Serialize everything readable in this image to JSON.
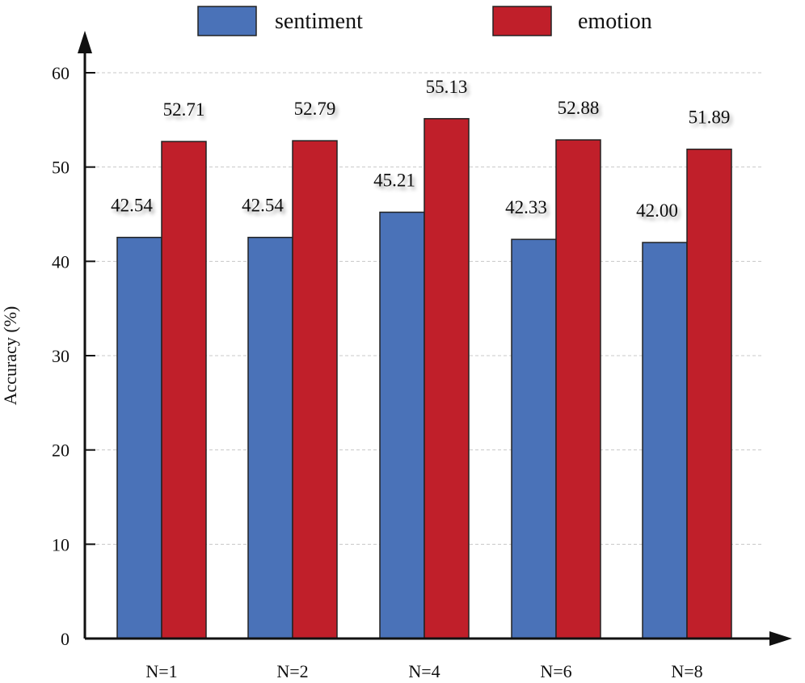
{
  "chart_data": {
    "type": "bar",
    "title": "",
    "xlabel": "",
    "ylabel": "Accuracy (%)",
    "ylim": [
      0,
      60
    ],
    "yticks": [
      0,
      10,
      20,
      30,
      40,
      50,
      60
    ],
    "grid": "horizontal dashed",
    "legend_position": "top",
    "categories": [
      "N=1",
      "N=2",
      "N=4",
      "N=6",
      "N=8"
    ],
    "series": [
      {
        "name": "sentiment",
        "color": "#4a72b8",
        "values": [
          42.54,
          42.54,
          45.21,
          42.33,
          42.0
        ],
        "labels": [
          "42.54",
          "42.54",
          "45.21",
          "42.33",
          "42.00"
        ]
      },
      {
        "name": "emotion",
        "color": "#c01f2a",
        "values": [
          52.71,
          52.79,
          55.13,
          52.88,
          51.89
        ],
        "labels": [
          "52.71",
          "52.79",
          "55.13",
          "52.88",
          "51.89"
        ]
      }
    ]
  }
}
